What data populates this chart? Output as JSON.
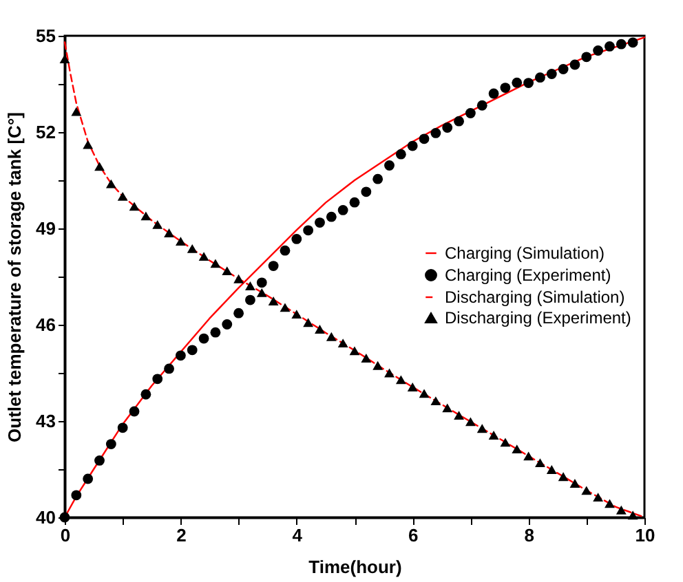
{
  "chart_data": {
    "type": "line",
    "xlabel": "Time(hour)",
    "ylabel": "Outlet temperature of storage tank [C°]",
    "xlim": [
      0,
      10
    ],
    "ylim": [
      40,
      55
    ],
    "xticks": [
      0,
      {
        "value": 1,
        "label": null
      },
      2,
      {
        "value": 3,
        "label": null
      },
      4,
      {
        "value": 5,
        "label": null
      },
      6,
      {
        "value": 7,
        "label": null
      },
      8,
      {
        "value": 9,
        "label": null
      },
      10
    ],
    "yticks": [
      40,
      {
        "value": 41.5,
        "label": null
      },
      43,
      {
        "value": 44.5,
        "label": null
      },
      46,
      {
        "value": 47.5,
        "label": null
      },
      49,
      {
        "value": 50.5,
        "label": null
      },
      52,
      {
        "value": 53.5,
        "label": null
      },
      55
    ],
    "legend": "right",
    "grid": false,
    "series": [
      {
        "name": "Charging (Simulation)",
        "type": "line",
        "color": "#ff0000",
        "marker": "none",
        "line_style": "solid",
        "x": [
          0,
          0.2,
          0.5,
          1,
          1.5,
          2,
          2.5,
          3,
          3.5,
          4,
          4.5,
          5,
          5.5,
          6,
          6.5,
          7,
          7.5,
          8,
          8.5,
          9,
          9.5,
          10
        ],
        "values": [
          40,
          40.65,
          41.5,
          42.9,
          44.1,
          45.15,
          46.2,
          47.15,
          48.05,
          48.95,
          49.8,
          50.5,
          51.1,
          51.7,
          52.2,
          52.65,
          53.1,
          53.55,
          53.95,
          54.35,
          54.65,
          54.95
        ]
      },
      {
        "name": "Charging (Experiment)",
        "type": "scatter",
        "color": "#000000",
        "marker": "circle",
        "x": [
          0,
          0.2,
          0.4,
          0.6,
          0.8,
          1,
          1.2,
          1.4,
          1.6,
          1.8,
          2,
          2.2,
          2.4,
          2.6,
          2.8,
          3,
          3.2,
          3.4,
          3.6,
          3.8,
          4,
          4.2,
          4.4,
          4.6,
          4.8,
          5,
          5.2,
          5.4,
          5.6,
          5.8,
          6,
          6.2,
          6.4,
          6.6,
          6.8,
          7,
          7.2,
          7.4,
          7.6,
          7.8,
          8,
          8.2,
          8.4,
          8.6,
          8.8,
          9,
          9.2,
          9.4,
          9.6,
          9.8
        ],
        "values": [
          40,
          40.69,
          41.2,
          41.77,
          42.28,
          42.79,
          43.3,
          43.83,
          44.31,
          44.63,
          45.04,
          45.21,
          45.57,
          45.76,
          46.01,
          46.36,
          46.77,
          47.31,
          47.83,
          48.31,
          48.67,
          48.94,
          49.18,
          49.36,
          49.57,
          49.81,
          50.14,
          50.54,
          50.96,
          51.31,
          51.57,
          51.79,
          51.97,
          52.14,
          52.34,
          52.59,
          52.83,
          53.2,
          53.38,
          53.54,
          53.53,
          53.7,
          53.81,
          53.96,
          54.1,
          54.34,
          54.54,
          54.67,
          54.74,
          54.79
        ]
      },
      {
        "name": "Discharging (Simulation)",
        "type": "line",
        "color": "#ff0000",
        "marker": "none",
        "line_style": "dashed",
        "x": [
          0,
          0.1,
          0.2,
          0.4,
          0.6,
          0.8,
          1,
          1.5,
          2,
          2.5,
          3,
          3.5,
          4,
          4.5,
          5,
          5.5,
          6,
          6.5,
          7,
          7.5,
          8,
          8.5,
          9,
          9.5,
          10
        ],
        "values": [
          54.8,
          53.8,
          52.9,
          51.7,
          50.95,
          50.4,
          50,
          49.25,
          48.6,
          48,
          47.43,
          46.9,
          46.33,
          45.75,
          45.2,
          44.62,
          44.06,
          43.52,
          42.98,
          42.45,
          41.91,
          41.38,
          40.84,
          40.33,
          40
        ]
      },
      {
        "name": "Discharging (Experiment)",
        "type": "scatter",
        "color": "#000000",
        "marker": "triangle",
        "x": [
          0,
          0.2,
          0.4,
          0.6,
          0.8,
          1,
          1.2,
          1.4,
          1.6,
          1.8,
          2,
          2.2,
          2.4,
          2.6,
          2.8,
          3,
          3.2,
          3.4,
          3.6,
          3.8,
          4,
          4.2,
          4.4,
          4.6,
          4.8,
          5,
          5.2,
          5.4,
          5.6,
          5.8,
          6,
          6.2,
          6.4,
          6.6,
          6.8,
          7,
          7.2,
          7.4,
          7.6,
          7.8,
          8,
          8.2,
          8.4,
          8.6,
          8.8,
          9,
          9.2,
          9.4,
          9.6,
          9.8
        ],
        "values": [
          54.28,
          52.64,
          51.61,
          50.93,
          50.39,
          50,
          49.69,
          49.39,
          49.12,
          48.86,
          48.6,
          48.37,
          48.13,
          47.91,
          47.68,
          47.43,
          47.21,
          47,
          46.74,
          46.54,
          46.33,
          46.07,
          45.86,
          45.63,
          45.43,
          45.19,
          44.96,
          44.73,
          44.5,
          44.29,
          44.06,
          43.86,
          43.63,
          43.41,
          43.18,
          42.98,
          42.77,
          42.56,
          42.34,
          42.13,
          41.91,
          41.7,
          41.49,
          41.27,
          41.06,
          40.84,
          40.63,
          40.43,
          40.23,
          40.07
        ]
      }
    ]
  }
}
